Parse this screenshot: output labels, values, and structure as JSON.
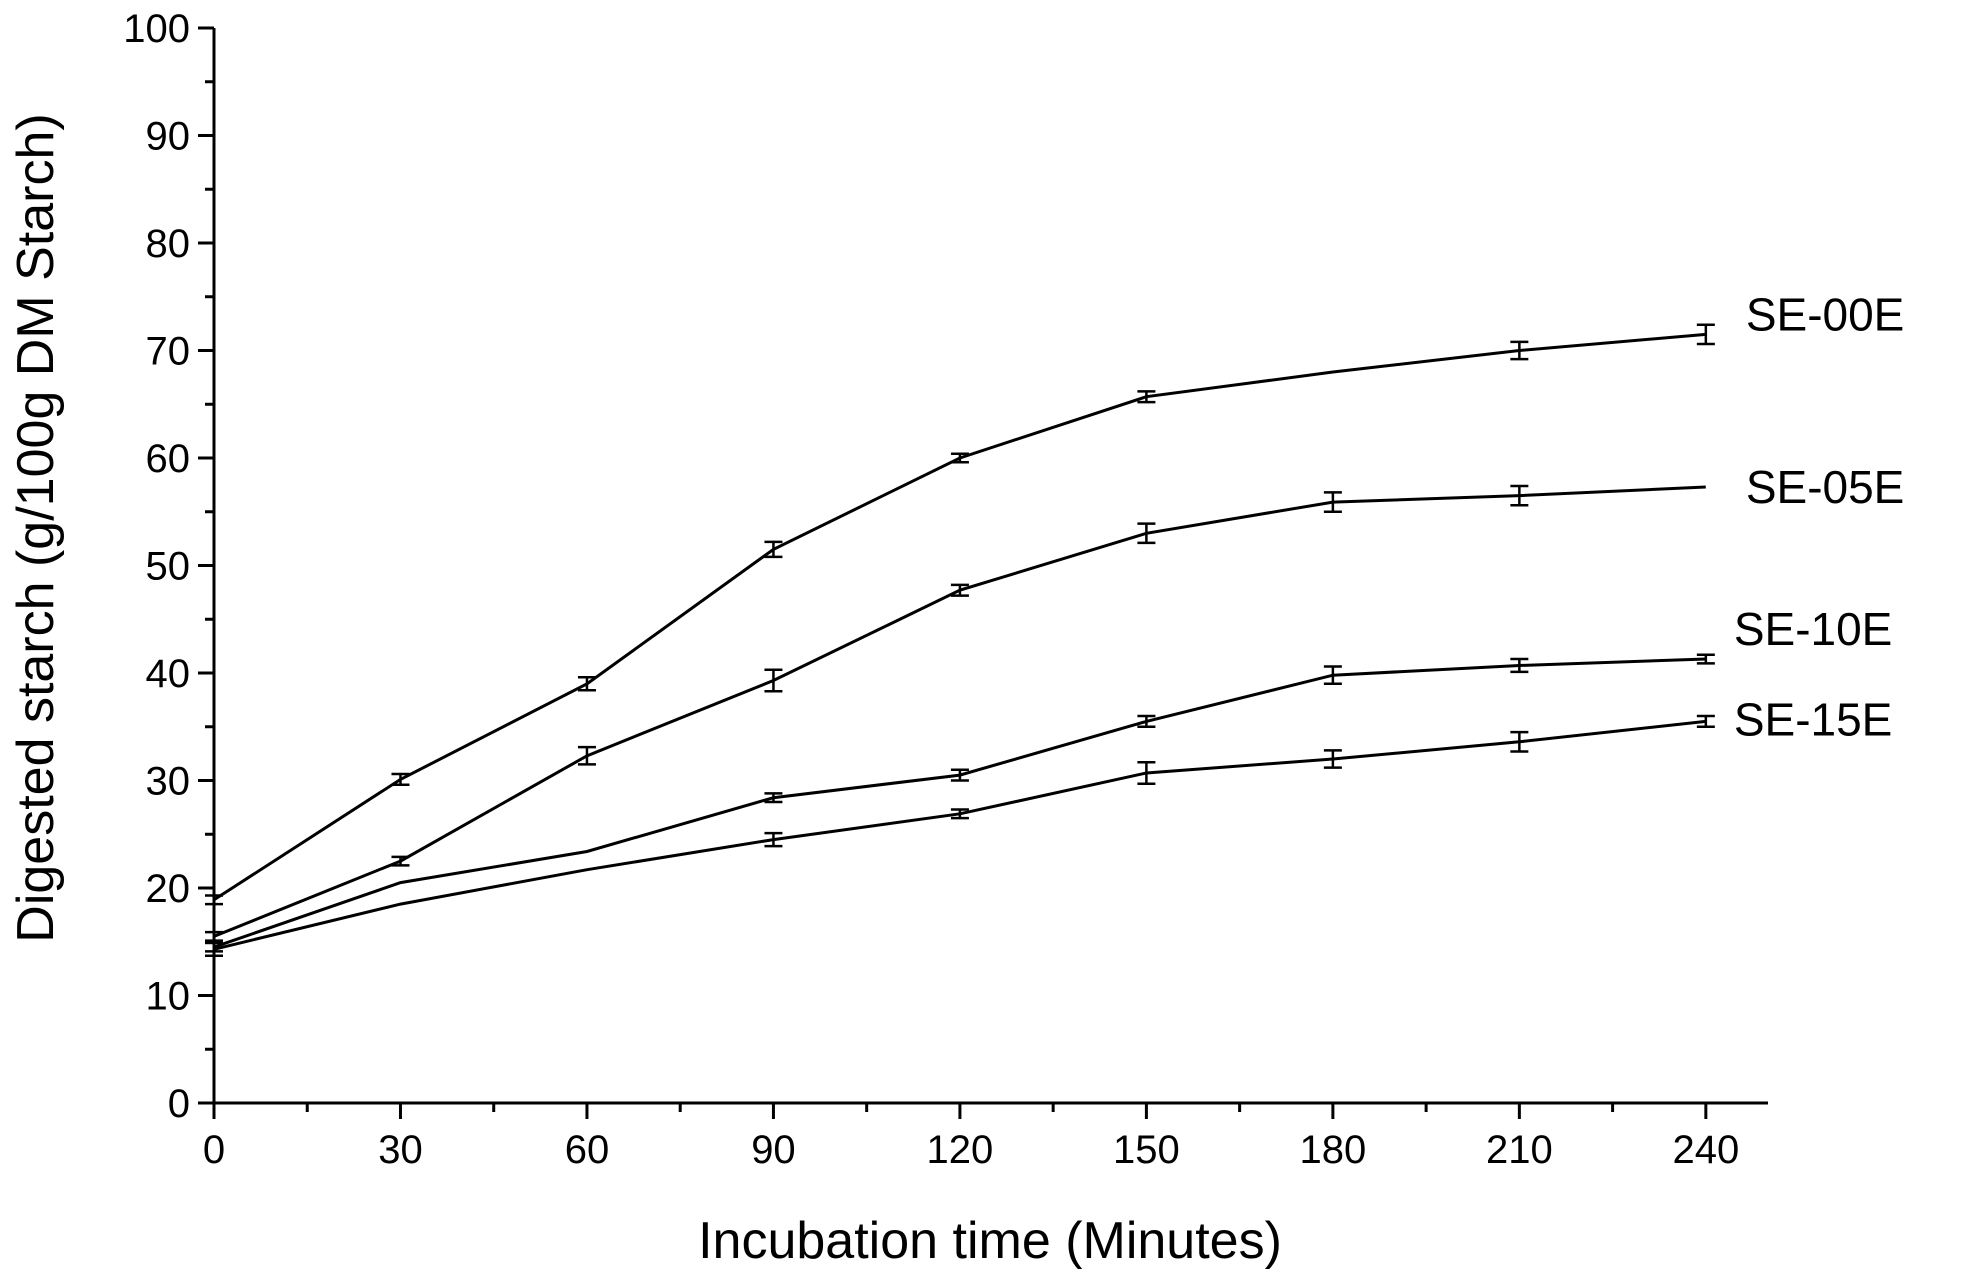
{
  "chart_data": {
    "type": "line",
    "title": "",
    "xlabel": "Incubation time (Minutes)",
    "ylabel": "Digested starch (g/100g DM Starch)",
    "xlim": [
      0,
      250
    ],
    "ylim": [
      0,
      100
    ],
    "x_ticks": [
      0,
      30,
      60,
      90,
      120,
      150,
      180,
      210,
      240
    ],
    "y_ticks": [
      0,
      10,
      20,
      30,
      40,
      50,
      60,
      70,
      80,
      90,
      100
    ],
    "grid": false,
    "legend": "series labels at right end of lines",
    "x": [
      0,
      30,
      60,
      90,
      120,
      150,
      180,
      210,
      240
    ],
    "series": [
      {
        "name": "SE-00E",
        "values": [
          18.9,
          30.1,
          39.0,
          51.5,
          60.0,
          65.7,
          68.0,
          70.0,
          71.5
        ],
        "errors": [
          0.4,
          0.5,
          0.6,
          0.7,
          0.4,
          0.5,
          0.0,
          0.8,
          0.9
        ]
      },
      {
        "name": "SE-05E",
        "values": [
          15.5,
          22.5,
          32.3,
          39.3,
          47.7,
          53.0,
          55.9,
          56.5,
          57.3
        ],
        "errors": [
          0.4,
          0.4,
          0.8,
          1.0,
          0.5,
          0.9,
          0.9,
          0.9,
          0.0
        ]
      },
      {
        "name": "SE-10E",
        "values": [
          14.5,
          20.5,
          23.4,
          28.4,
          30.5,
          35.5,
          39.8,
          40.7,
          41.3
        ],
        "errors": [
          0.4,
          0.0,
          0.0,
          0.4,
          0.5,
          0.5,
          0.8,
          0.6,
          0.4
        ]
      },
      {
        "name": "SE-15E",
        "values": [
          14.3,
          18.5,
          21.7,
          24.5,
          26.9,
          30.7,
          32.0,
          33.6,
          35.5
        ],
        "errors": [
          0.6,
          0.0,
          0.0,
          0.6,
          0.4,
          1.0,
          0.8,
          0.9,
          0.5
        ]
      }
    ]
  }
}
